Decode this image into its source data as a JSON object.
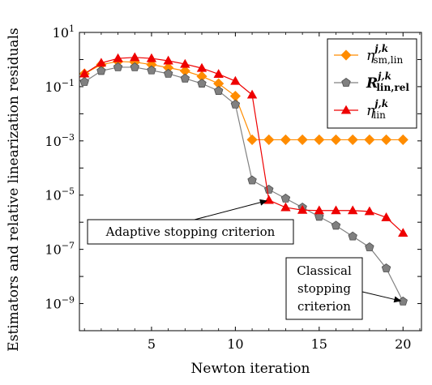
{
  "chart_data": {
    "type": "line",
    "xlabel": "Newton iteration",
    "ylabel": "Estimators and relative linearization residuals",
    "xlim": [
      0.7,
      21.1
    ],
    "ylim_log10": [
      -10,
      1
    ],
    "yscale": "log",
    "x_ticks": [
      5,
      10,
      15,
      20
    ],
    "y_ticks": [
      {
        "exp": 1,
        "base": "10",
        "sup": "1"
      },
      {
        "exp": -1,
        "base": "10",
        "sup": "−1"
      },
      {
        "exp": -3,
        "base": "10",
        "sup": "−3"
      },
      {
        "exp": -5,
        "base": "10",
        "sup": "−5"
      },
      {
        "exp": -7,
        "base": "10",
        "sup": "−7"
      },
      {
        "exp": -9,
        "base": "10",
        "sup": "−9"
      }
    ],
    "legend_position": "top-right",
    "series": [
      {
        "key": "eta_sm_lin",
        "color": "#FF8C00",
        "marker": "diamond",
        "legend": {
          "base": "η",
          "sup": "j,k",
          "sub": "sm,lin"
        },
        "x": [
          1,
          2,
          3,
          4,
          5,
          6,
          7,
          8,
          9,
          10,
          11,
          12,
          13,
          14,
          15,
          16,
          17,
          18,
          19,
          20
        ],
        "y": [
          0.3,
          0.65,
          0.85,
          0.8,
          0.65,
          0.5,
          0.38,
          0.24,
          0.13,
          0.045,
          0.0011,
          0.0011,
          0.0011,
          0.0011,
          0.0011,
          0.0011,
          0.0011,
          0.0011,
          0.0011,
          0.0011
        ]
      },
      {
        "key": "R_lin_rel",
        "color": "#808080",
        "marker": "pentagon",
        "legend": {
          "base": "R",
          "sup": "j,k",
          "sub": "lin,rel"
        },
        "x": [
          1,
          2,
          3,
          4,
          5,
          6,
          7,
          8,
          9,
          10,
          11,
          12,
          13,
          14,
          15,
          16,
          17,
          18,
          19,
          20
        ],
        "y": [
          0.15,
          0.38,
          0.52,
          0.52,
          0.4,
          0.3,
          0.2,
          0.13,
          0.07,
          0.022,
          3.5e-05,
          1.6e-05,
          7.5e-06,
          3.5e-06,
          1.6e-06,
          7.5e-07,
          3e-07,
          1.2e-07,
          2e-08,
          1.2e-09
        ]
      },
      {
        "key": "eta_lin",
        "color": "#EE0000",
        "marker": "triangle",
        "legend": {
          "base": "η",
          "sup": "j,k",
          "sub": "lin"
        },
        "x": [
          1,
          2,
          3,
          4,
          5,
          6,
          7,
          8,
          9,
          10,
          11,
          12,
          13,
          14,
          15,
          16,
          17,
          18,
          19,
          20
        ],
        "y": [
          0.3,
          0.75,
          1.1,
          1.2,
          1.1,
          0.9,
          0.68,
          0.48,
          0.29,
          0.16,
          0.05,
          6.5e-06,
          3.5e-06,
          2.8e-06,
          2.7e-06,
          2.7e-06,
          2.7e-06,
          2.5e-06,
          1.5e-06,
          4e-07
        ]
      }
    ],
    "annotations": [
      {
        "key": "adaptive",
        "lines": [
          "Adaptive stopping criterion"
        ],
        "target_x": 12,
        "target_y": 6.5e-06
      },
      {
        "key": "classical",
        "lines": [
          "Classical",
          "stopping",
          "criterion"
        ],
        "target_x": 20,
        "target_y": 1.2e-09
      }
    ]
  }
}
